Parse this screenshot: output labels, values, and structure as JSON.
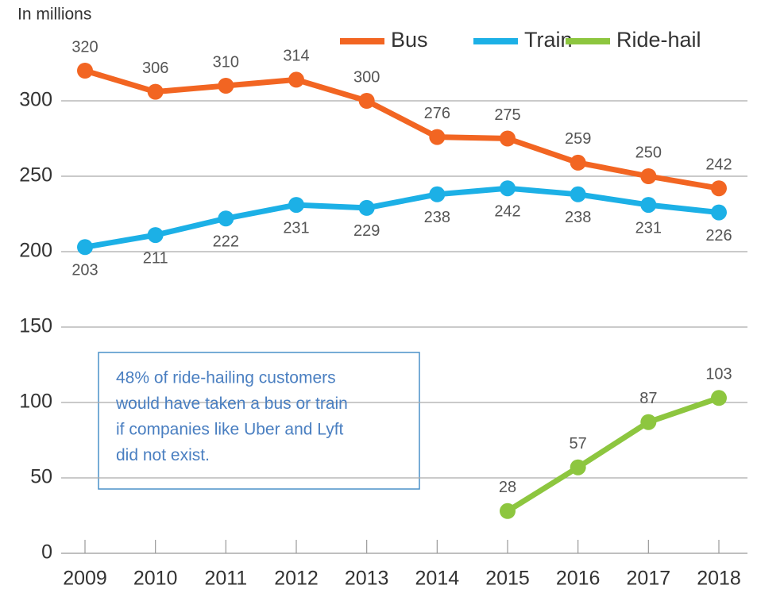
{
  "chart_data": {
    "type": "line",
    "subtitle": "In millions",
    "categories": [
      "2009",
      "2010",
      "2011",
      "2012",
      "2013",
      "2014",
      "2015",
      "2016",
      "2017",
      "2018"
    ],
    "series": [
      {
        "name": "Bus",
        "color": "#f26522",
        "values": [
          320,
          306,
          310,
          314,
          300,
          276,
          275,
          259,
          250,
          242
        ]
      },
      {
        "name": "Train",
        "color": "#1cb0e6",
        "values": [
          203,
          211,
          222,
          231,
          229,
          238,
          242,
          238,
          231,
          226
        ]
      },
      {
        "name": "Ride-hail",
        "color": "#8dc63f",
        "values": [
          null,
          null,
          null,
          null,
          null,
          null,
          28,
          57,
          87,
          103
        ]
      }
    ],
    "ylim": [
      0,
      300
    ],
    "yticks": [
      0,
      50,
      100,
      150,
      200,
      250,
      300
    ],
    "grid": true,
    "annotation": [
      "48% of ride-hailing customers",
      "would have taken a bus or train",
      "if companies like Uber and Lyft",
      "did not exist."
    ]
  }
}
